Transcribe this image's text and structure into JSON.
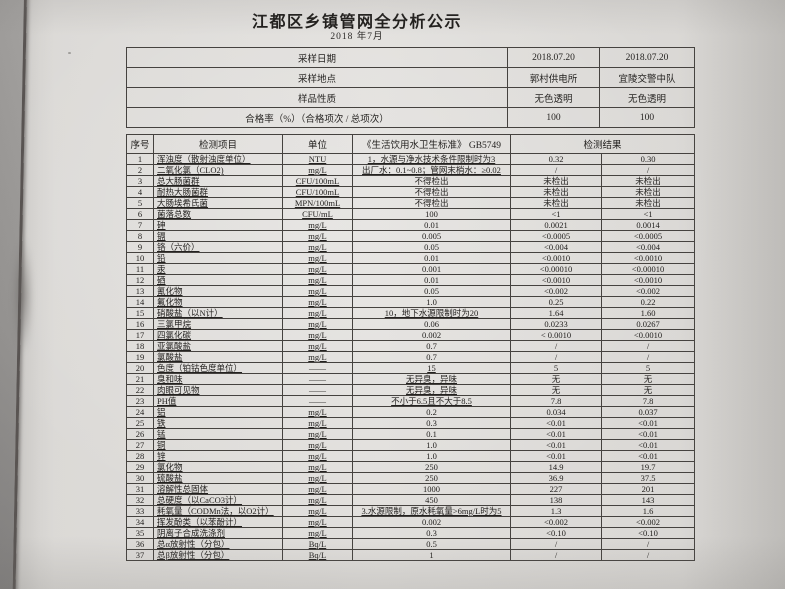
{
  "colors": {
    "paper": "#dedcd8",
    "photo_background": "#aba9a7",
    "table_line": "#45423f",
    "text": "#242220"
  },
  "doc": {
    "title": "江都区乡镇管网全分析公示",
    "subtitle": "2018 年7月"
  },
  "info_table": {
    "rows": [
      {
        "label": "采样日期",
        "values": [
          "2018.07.20",
          "2018.07.20"
        ]
      },
      {
        "label": "采样地点",
        "values": [
          "郭村供电所",
          "宜陵交警中队"
        ]
      },
      {
        "label": "样品性质",
        "values": [
          "无色透明",
          "无色透明"
        ]
      },
      {
        "label": "合格率（%）（合格项次 / 总项次）",
        "values": [
          "100",
          "100"
        ]
      }
    ]
  },
  "main_table": {
    "columns": {
      "index": "序号",
      "item": "检测项目",
      "unit": "单位",
      "standard": "《生活饮用水卫生标准》 GB5749",
      "result": "检测结果"
    },
    "rows": [
      {
        "no": "1",
        "item": "浑浊度（散射浊度单位）",
        "unit": "NTU",
        "standard": "1，水源与净水技术条件限制时为3",
        "std_u": true,
        "r1": "0.32",
        "r2": "0.30"
      },
      {
        "no": "2",
        "item": "二氧化氯（CLO2)",
        "unit": "mg/L",
        "standard": "出厂水：0.1~0.8；管网末梢水：≥0.02",
        "std_u": true,
        "r1": "/",
        "r2": "/"
      },
      {
        "no": "3",
        "item": "总大肠菌群",
        "unit": "CFU/100mL",
        "standard": "不得检出",
        "std_u": false,
        "r1": "未检出",
        "r2": "未检出"
      },
      {
        "no": "4",
        "item": "耐热大肠菌群",
        "unit": "CFU/100mL",
        "standard": "不得检出",
        "std_u": false,
        "r1": "未检出",
        "r2": "未检出"
      },
      {
        "no": "5",
        "item": "大肠埃希氏菌",
        "unit": "MPN/100mL",
        "standard": "不得检出",
        "std_u": false,
        "r1": "未检出",
        "r2": "未检出"
      },
      {
        "no": "6",
        "item": "菌落总数",
        "unit": "CFU/mL",
        "standard": "100",
        "std_u": false,
        "r1": "<1",
        "r2": "<1"
      },
      {
        "no": "7",
        "item": "砷",
        "unit": "mg/L",
        "standard": "0.01",
        "std_u": false,
        "r1": "0.0021",
        "r2": "0.0014"
      },
      {
        "no": "8",
        "item": "镉",
        "unit": "mg/L",
        "standard": "0.005",
        "std_u": false,
        "r1": "<0.0005",
        "r2": "<0.0005"
      },
      {
        "no": "9",
        "item": "铬（六价）",
        "unit": "mg/L",
        "standard": "0.05",
        "std_u": false,
        "r1": "<0.004",
        "r2": "<0.004"
      },
      {
        "no": "10",
        "item": "铅",
        "unit": "mg/L",
        "standard": "0.01",
        "std_u": false,
        "r1": "<0.0010",
        "r2": "<0.0010"
      },
      {
        "no": "11",
        "item": "汞",
        "unit": "mg/L",
        "standard": "0.001",
        "std_u": false,
        "r1": "<0.00010",
        "r2": "<0.00010"
      },
      {
        "no": "12",
        "item": "硒",
        "unit": "mg/L",
        "standard": "0.01",
        "std_u": false,
        "r1": "<0.0010",
        "r2": "<0.0010"
      },
      {
        "no": "13",
        "item": "氰化物",
        "unit": "mg/L",
        "standard": "0.05",
        "std_u": false,
        "r1": "<0.002",
        "r2": "<0.002"
      },
      {
        "no": "14",
        "item": "氟化物",
        "unit": "mg/L",
        "standard": "1.0",
        "std_u": false,
        "r1": "0.25",
        "r2": "0.22"
      },
      {
        "no": "15",
        "item": "硝酸盐（以N计）",
        "unit": "mg/L",
        "standard": "10，地下水源限制时为20",
        "std_u": true,
        "r1": "1.64",
        "r2": "1.60"
      },
      {
        "no": "16",
        "item": "三氯甲烷",
        "unit": "mg/L",
        "standard": "0.06",
        "std_u": false,
        "r1": "0.0233",
        "r2": "0.0267"
      },
      {
        "no": "17",
        "item": "四氯化碳",
        "unit": "mg/L",
        "standard": "0.002",
        "std_u": false,
        "r1": "< 0.0010",
        "r2": "<0.0010"
      },
      {
        "no": "18",
        "item": "亚氯酸盐",
        "unit": "mg/L",
        "standard": "0.7",
        "std_u": false,
        "r1": "/",
        "r2": "/"
      },
      {
        "no": "19",
        "item": "氯酸盐",
        "unit": "mg/L",
        "standard": "0.7",
        "std_u": false,
        "r1": "/",
        "r2": "/"
      },
      {
        "no": "20",
        "item": "色度（铂钴色度单位）",
        "unit": "——",
        "standard": "15",
        "std_u": true,
        "r1": "5",
        "r2": "5"
      },
      {
        "no": "21",
        "item": "臭和味",
        "unit": "——",
        "standard": "无异臭，异味",
        "std_u": true,
        "r1": "无",
        "r2": "无"
      },
      {
        "no": "22",
        "item": "肉眼可见物",
        "unit": "——",
        "standard": "无异臭，异味",
        "std_u": true,
        "r1": "无",
        "r2": "无"
      },
      {
        "no": "23",
        "item": "PH值",
        "unit": "——",
        "standard": "不小于6.5且不大于8.5",
        "std_u": true,
        "r1": "7.8",
        "r2": "7.8"
      },
      {
        "no": "24",
        "item": "铝",
        "unit": "mg/L",
        "standard": "0.2",
        "std_u": false,
        "r1": "0.034",
        "r2": "0.037"
      },
      {
        "no": "25",
        "item": "铁",
        "unit": "mg/L",
        "standard": "0.3",
        "std_u": false,
        "r1": "<0.01",
        "r2": "<0.01"
      },
      {
        "no": "26",
        "item": "锰",
        "unit": "mg/L",
        "standard": "0.1",
        "std_u": false,
        "r1": "<0.01",
        "r2": "<0.01"
      },
      {
        "no": "27",
        "item": "铜",
        "unit": "mg/L",
        "standard": "1.0",
        "std_u": false,
        "r1": "<0.01",
        "r2": "<0.01"
      },
      {
        "no": "28",
        "item": "锌",
        "unit": "mg/L",
        "standard": "1.0",
        "std_u": false,
        "r1": "<0.01",
        "r2": "<0.01"
      },
      {
        "no": "29",
        "item": "氯化物",
        "unit": "mg/L",
        "standard": "250",
        "std_u": false,
        "r1": "14.9",
        "r2": "19.7"
      },
      {
        "no": "30",
        "item": "硫酸盐",
        "unit": "mg/L",
        "standard": "250",
        "std_u": false,
        "r1": "36.9",
        "r2": "37.5"
      },
      {
        "no": "31",
        "item": "溶解性总固体",
        "unit": "mg/L",
        "standard": "1000",
        "std_u": false,
        "r1": "227",
        "r2": "201"
      },
      {
        "no": "32",
        "item": "总硬度（以CaCO3计）",
        "unit": "mg/L",
        "standard": "450",
        "std_u": false,
        "r1": "138",
        "r2": "143"
      },
      {
        "no": "33",
        "item": "耗氧量（CODMn法，以O2计）",
        "unit": "mg/L",
        "standard": "3.水源限制，原水耗氧量>6mg/L时为5",
        "std_u": true,
        "r1": "1.3",
        "r2": "1.6"
      },
      {
        "no": "34",
        "item": "挥发酚类（以苯酚计）",
        "unit": "mg/L",
        "standard": "0.002",
        "std_u": false,
        "r1": "<0.002",
        "r2": "<0.002"
      },
      {
        "no": "35",
        "item": "阴离子合成洗涤剂",
        "unit": "mg/L",
        "standard": "0.3",
        "std_u": false,
        "r1": "<0.10",
        "r2": "<0.10"
      },
      {
        "no": "36",
        "item": "总α放射性（分包）",
        "unit": "Bq/L",
        "standard": "0.5",
        "std_u": false,
        "r1": "/",
        "r2": "/"
      },
      {
        "no": "37",
        "item": "总β放射性（分包）",
        "unit": "Bq/L",
        "standard": "1",
        "std_u": false,
        "r1": "/",
        "r2": "/"
      }
    ]
  }
}
